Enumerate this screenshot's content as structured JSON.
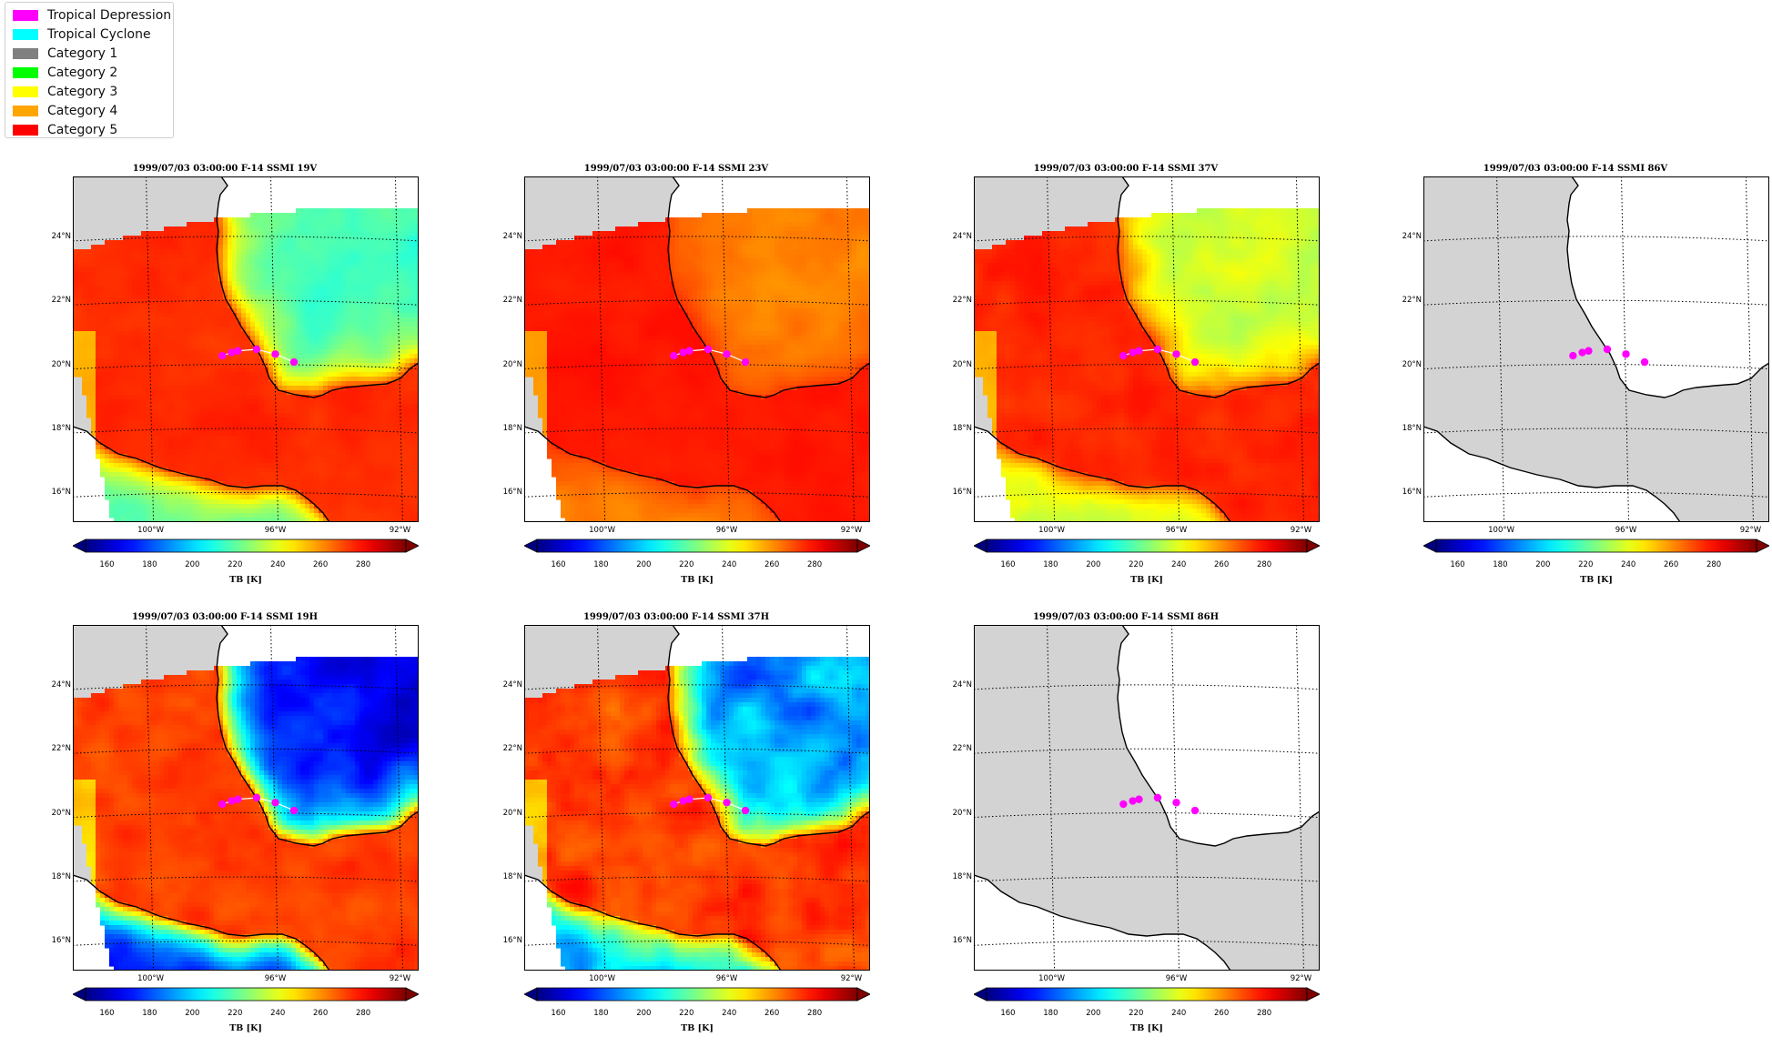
{
  "legend": [
    {
      "label": "Tropical Depression",
      "color": "#ff00ff"
    },
    {
      "label": "Tropical Cyclone",
      "color": "#00ffff"
    },
    {
      "label": "Category 1",
      "color": "#808080"
    },
    {
      "label": "Category 2",
      "color": "#00ff00"
    },
    {
      "label": "Category 3",
      "color": "#ffff00"
    },
    {
      "label": "Category 4",
      "color": "#ffa500"
    },
    {
      "label": "Category 5",
      "color": "#ff0000"
    }
  ],
  "lat_ticks": [
    "24°N",
    "22°N",
    "20°N",
    "18°N",
    "16°N"
  ],
  "lon_ticks": [
    "100°W",
    "96°W",
    "92°W"
  ],
  "colorbar": {
    "ticks": [
      "160",
      "180",
      "200",
      "220",
      "240",
      "260",
      "280"
    ],
    "label": "TB [K]",
    "range": [
      150,
      300
    ],
    "colormap": "jet"
  },
  "chart_data": [
    {
      "type": "heatmap",
      "title": "1999/07/03 03:00:00  F-14 SSMI 19V",
      "channel": "19V",
      "has_data": true,
      "land_tb": 275,
      "ocean_tb": 215,
      "coast_tb": 270,
      "noise": 6
    },
    {
      "type": "heatmap",
      "title": "1999/07/03 03:00:00  F-14 SSMI 23V",
      "channel": "23V",
      "has_data": true,
      "land_tb": 278,
      "ocean_tb": 262,
      "coast_tb": 272,
      "noise": 4
    },
    {
      "type": "heatmap",
      "title": "1999/07/03 03:00:00  F-14 SSMI 37V",
      "channel": "37V",
      "has_data": true,
      "land_tb": 276,
      "ocean_tb": 235,
      "coast_tb": 270,
      "noise": 8
    },
    {
      "type": "heatmap",
      "title": "1999/07/03 03:00:00  F-14 SSMI 86V",
      "channel": "86V",
      "has_data": false
    },
    {
      "type": "heatmap",
      "title": "1999/07/03 03:00:00  F-14 SSMI 19H",
      "channel": "19H",
      "has_data": true,
      "land_tb": 272,
      "ocean_tb": 168,
      "coast_tb": 265,
      "noise": 12
    },
    {
      "type": "heatmap",
      "title": "1999/07/03 03:00:00  F-14 SSMI 37H",
      "channel": "37H",
      "has_data": true,
      "land_tb": 272,
      "ocean_tb": 192,
      "coast_tb": 262,
      "noise": 18
    },
    {
      "type": "heatmap",
      "title": "1999/07/03 03:00:00  F-14 SSMI 86H",
      "channel": "86H",
      "has_data": false
    }
  ],
  "storm_track": {
    "category": "Tropical Depression",
    "points": [
      {
        "lon": -97.7,
        "lat": 20.3
      },
      {
        "lon": -97.4,
        "lat": 20.4
      },
      {
        "lon": -97.2,
        "lat": 20.45
      },
      {
        "lon": -96.6,
        "lat": 20.5
      },
      {
        "lon": -96.0,
        "lat": 20.35
      },
      {
        "lon": -95.4,
        "lat": 20.1
      }
    ]
  },
  "map_extent": {
    "lon": [
      -102.5,
      -91.4
    ],
    "lat": [
      15.1,
      25.9
    ]
  }
}
